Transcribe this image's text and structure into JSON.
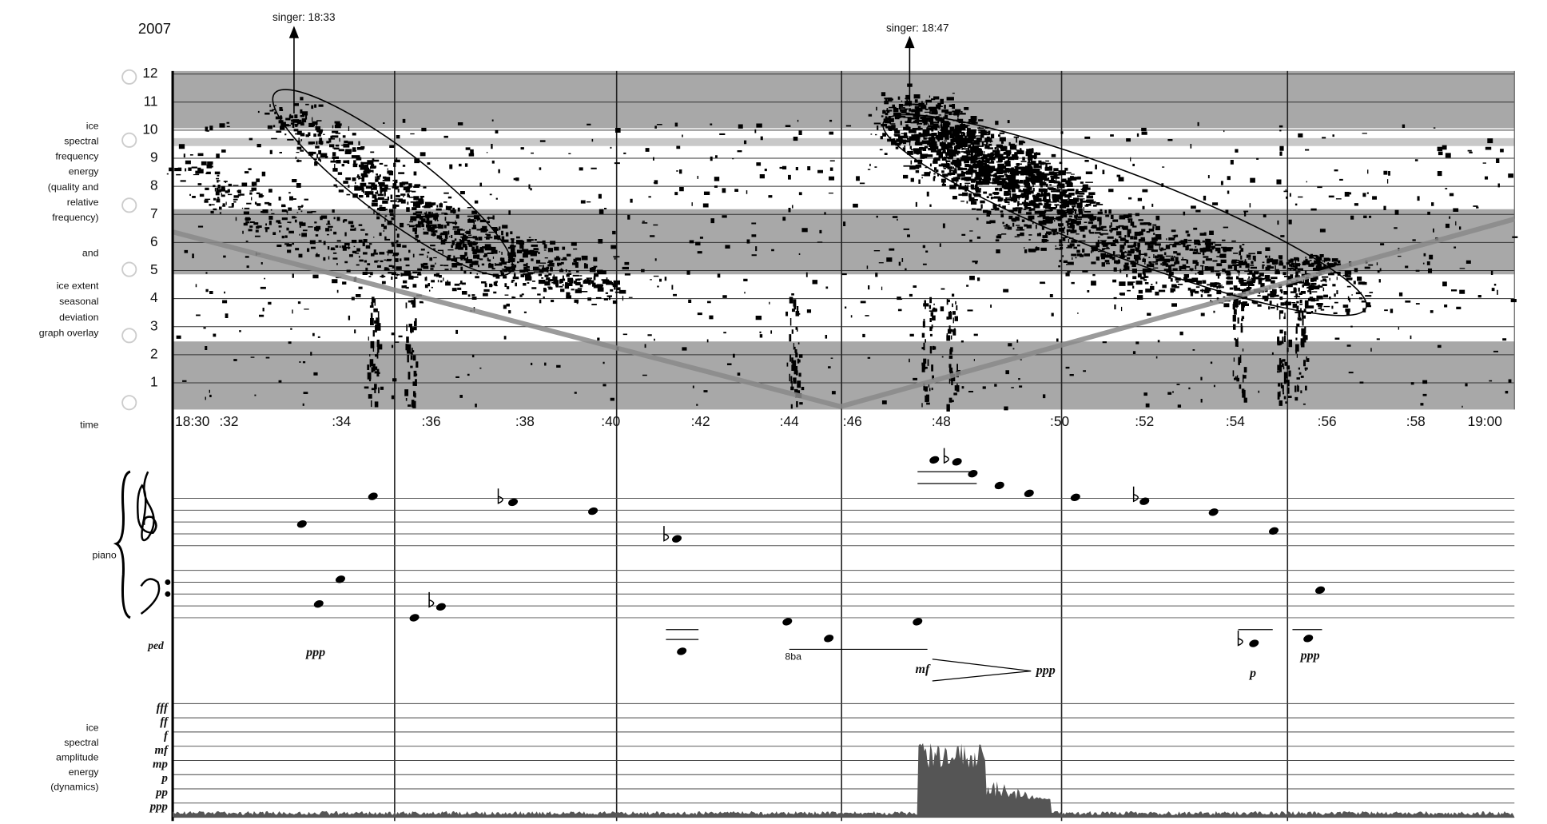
{
  "header": {
    "year": "2007"
  },
  "annotations": [
    "singer: 18:33",
    "singer: 18:47"
  ],
  "frequency_graph": {
    "label_lines": [
      "ice",
      "spectral",
      "frequency",
      "energy",
      "(quality and",
      "relative",
      "frequency)"
    ],
    "joiner": "and",
    "overlay_label_lines": [
      "ice extent",
      "seasonal",
      "deviation",
      "graph overlay"
    ],
    "y_labels": [
      "12",
      "11",
      "10",
      "9",
      "8",
      "7",
      "6",
      "5",
      "4",
      "3",
      "2",
      "1"
    ],
    "time_label": "time",
    "time_labels": [
      "18:30",
      ":32",
      ":34",
      ":36",
      ":38",
      ":40",
      ":42",
      ":44",
      ":46",
      ":48",
      ":50",
      ":52",
      ":54",
      ":56",
      ":58",
      "19:00"
    ]
  },
  "piano": {
    "label": "piano",
    "pedal": "ped"
  },
  "dynamic_marks": [
    "ppp",
    "8ba",
    "mf",
    "ppp",
    "p",
    "ppp"
  ],
  "amplitude": {
    "label_lines": [
      "ice",
      "spectral",
      "amplitude",
      "energy",
      "(dynamics)"
    ],
    "levels": [
      "fff",
      "ff",
      "f",
      "mf",
      "mp",
      "p",
      "pp",
      "ppp"
    ]
  }
}
